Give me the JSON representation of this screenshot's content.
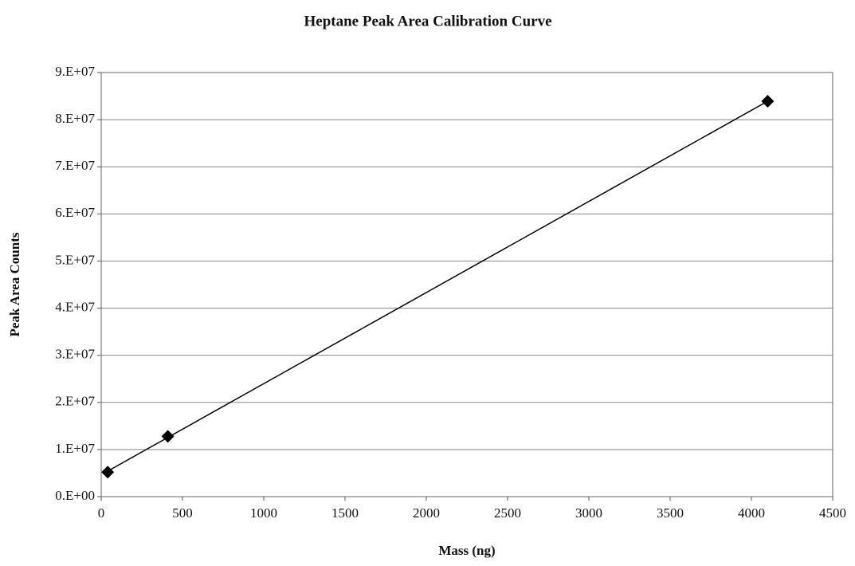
{
  "chart_data": {
    "type": "scatter",
    "title": "Heptane Peak Area Calibration Curve",
    "x_label": "Mass (ng)",
    "y_label": "Peak Area Counts",
    "series": [
      {
        "color": "#000000",
        "x": [
          40,
          410,
          4100
        ],
        "values": [
          5200000,
          12800000,
          83900000
        ]
      }
    ],
    "trendline": "linear",
    "xlim": [
      0,
      4500
    ],
    "xticks": [
      0,
      500,
      1000,
      1500,
      2000,
      2500,
      3000,
      3500,
      4000,
      4500
    ],
    "ylim": [
      0,
      90000000
    ],
    "yticks": [
      {
        "value": 0,
        "label": "0.E+00"
      },
      {
        "value": 10000000,
        "label": "1.E+07"
      },
      {
        "value": 20000000,
        "label": "2.E+07"
      },
      {
        "value": 30000000,
        "label": "3.E+07"
      },
      {
        "value": 40000000,
        "label": "4.E+07"
      },
      {
        "value": 50000000,
        "label": "5.E+07"
      },
      {
        "value": 60000000,
        "label": "6.E+07"
      },
      {
        "value": 70000000,
        "label": "7.E+07"
      },
      {
        "value": 80000000,
        "label": "8.E+07"
      },
      {
        "value": 90000000,
        "label": "9.E+07"
      }
    ],
    "grid": true
  }
}
